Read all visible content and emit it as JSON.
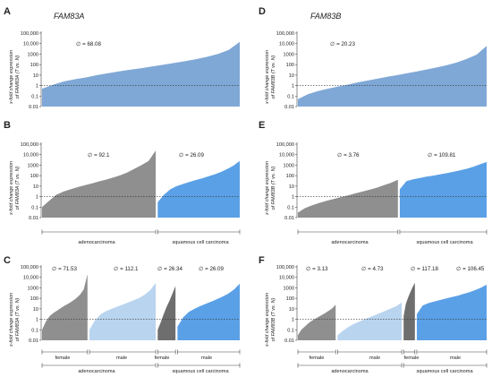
{
  "colors": {
    "blue": "#7fa8d6",
    "grey": "#8f8f8f",
    "mid_blue": "#5aa0e6",
    "light_blue": "#b9d4ef",
    "dark_grey": "#6e6e6e"
  },
  "axis": {
    "tick_labels": [
      "0.01",
      "0.1",
      "1",
      "10",
      "100",
      "1000",
      "10,000",
      "100,000"
    ],
    "ylabel_line1": "x-fold change expression",
    "ylabel_fam83a": "of FAM83A (T vs. N)",
    "ylabel_fam83b": "of FAM83B (T vs. N)"
  },
  "genes": {
    "a": "FAM83A",
    "b": "FAM83B"
  },
  "panels": {
    "a": {
      "letter": "A",
      "means": [
        "∅ = 68.08"
      ]
    },
    "b": {
      "letter": "B",
      "means": [
        "∅ = 92.1",
        "∅ = 26.09"
      ],
      "groups": [
        "adenocarcinoma",
        "squamous cell carcinoma"
      ]
    },
    "c": {
      "letter": "C",
      "means": [
        "∅ = 71.53",
        "∅ = 112.1",
        "∅ = 26.34",
        "∅ = 26.09"
      ],
      "sexes": [
        "female",
        "male",
        "female",
        "male"
      ],
      "groups": [
        "adenocarcinoma",
        "squamous cell carcinoma"
      ]
    },
    "d": {
      "letter": "D",
      "means": [
        "∅ = 20.23"
      ]
    },
    "e": {
      "letter": "E",
      "means": [
        "∅ = 3.76",
        "∅ = 109.81"
      ],
      "groups": [
        "adenocarcinoma",
        "squamous cell carcinoma"
      ]
    },
    "f": {
      "letter": "F",
      "means": [
        "∅ = 3.13",
        "∅ = 4.73",
        "∅ = 117.18",
        "∅ = 106.45"
      ],
      "sexes": [
        "female",
        "male",
        "female",
        "male"
      ],
      "groups": [
        "adenocarcinoma",
        "squamous cell carcinoma"
      ]
    }
  },
  "chart_data": [
    {
      "id": "A",
      "type": "area",
      "yscale": "log",
      "ylim": [
        0.01,
        100000
      ],
      "reference_line": 1,
      "series": [
        {
          "name": "",
          "color": "blue",
          "values": [
            0.5,
            1.2,
            2.5,
            4,
            6,
            10,
            15,
            22,
            32,
            45,
            65,
            95,
            140,
            210,
            330,
            550,
            1000,
            2500,
            15000
          ]
        }
      ]
    },
    {
      "id": "B",
      "type": "area",
      "yscale": "log",
      "ylim": [
        0.01,
        100000
      ],
      "reference_line": 1,
      "series": [
        {
          "name": "adenocarcinoma",
          "color": "grey",
          "values": [
            0.1,
            0.4,
            1.5,
            3,
            5,
            8,
            12,
            18,
            28,
            42,
            65,
            110,
            200,
            450,
            1000,
            2500,
            25000
          ]
        },
        {
          "name": "squamous cell carcinoma",
          "color": "mid_blue",
          "values": [
            0.3,
            1.5,
            5,
            10,
            16,
            25,
            38,
            55,
            85,
            130,
            220,
            420,
            900,
            2500
          ]
        }
      ]
    },
    {
      "id": "C",
      "type": "area",
      "yscale": "log",
      "ylim": [
        0.01,
        100000
      ],
      "reference_line": 1,
      "series": [
        {
          "name": "female",
          "color": "grey",
          "values": [
            0.1,
            0.6,
            2,
            4,
            7,
            12,
            20,
            32,
            55,
            100,
            220,
            700,
            20000
          ]
        },
        {
          "name": "male",
          "color": "light_blue",
          "values": [
            0.1,
            0.8,
            3,
            6,
            10,
            16,
            25,
            40,
            65,
            110,
            220,
            600,
            3000
          ]
        },
        {
          "name": "female",
          "color": "dark_grey",
          "values": [
            0.1,
            0.5,
            3,
            15,
            60,
            300,
            1500
          ]
        },
        {
          "name": "male",
          "color": "mid_blue",
          "values": [
            0.2,
            1.5,
            5,
            10,
            18,
            30,
            50,
            85,
            150,
            280,
            700,
            2500
          ]
        }
      ]
    },
    {
      "id": "D",
      "type": "area",
      "yscale": "log",
      "ylim": [
        0.01,
        100000
      ],
      "reference_line": 1,
      "series": [
        {
          "name": "",
          "color": "blue",
          "values": [
            0.05,
            0.15,
            0.3,
            0.5,
            0.8,
            1.2,
            2,
            3,
            4.5,
            7,
            10,
            15,
            22,
            35,
            55,
            90,
            160,
            350,
            900,
            6000
          ]
        }
      ]
    },
    {
      "id": "E",
      "type": "area",
      "yscale": "log",
      "ylim": [
        0.01,
        100000
      ],
      "reference_line": 1,
      "series": [
        {
          "name": "adenocarcinoma",
          "color": "grey",
          "values": [
            0.03,
            0.08,
            0.15,
            0.25,
            0.4,
            0.6,
            0.9,
            1.3,
            2,
            3,
            4.5,
            7,
            12,
            20,
            40
          ]
        },
        {
          "name": "squamous cell carcinoma",
          "color": "mid_blue",
          "values": [
            5,
            30,
            45,
            60,
            80,
            100,
            130,
            170,
            230,
            320,
            450,
            700,
            1200,
            2000
          ]
        }
      ]
    },
    {
      "id": "F",
      "type": "area",
      "yscale": "log",
      "ylim": [
        0.01,
        100000
      ],
      "reference_line": 1,
      "series": [
        {
          "name": "female",
          "color": "grey",
          "values": [
            0.03,
            0.1,
            0.2,
            0.4,
            0.7,
            1.1,
            1.7,
            2.6,
            4,
            6.5,
            11,
            25
          ]
        },
        {
          "name": "male",
          "color": "light_blue",
          "values": [
            0.03,
            0.08,
            0.18,
            0.35,
            0.6,
            1,
            1.6,
            2.5,
            4,
            6.5,
            11,
            18,
            40
          ]
        },
        {
          "name": "female",
          "color": "dark_grey",
          "values": [
            2,
            30,
            120,
            400,
            1200,
            3000
          ]
        },
        {
          "name": "male",
          "color": "mid_blue",
          "values": [
            3,
            20,
            35,
            50,
            70,
            95,
            130,
            180,
            260,
            380,
            600,
            1000,
            2000
          ]
        }
      ]
    }
  ]
}
